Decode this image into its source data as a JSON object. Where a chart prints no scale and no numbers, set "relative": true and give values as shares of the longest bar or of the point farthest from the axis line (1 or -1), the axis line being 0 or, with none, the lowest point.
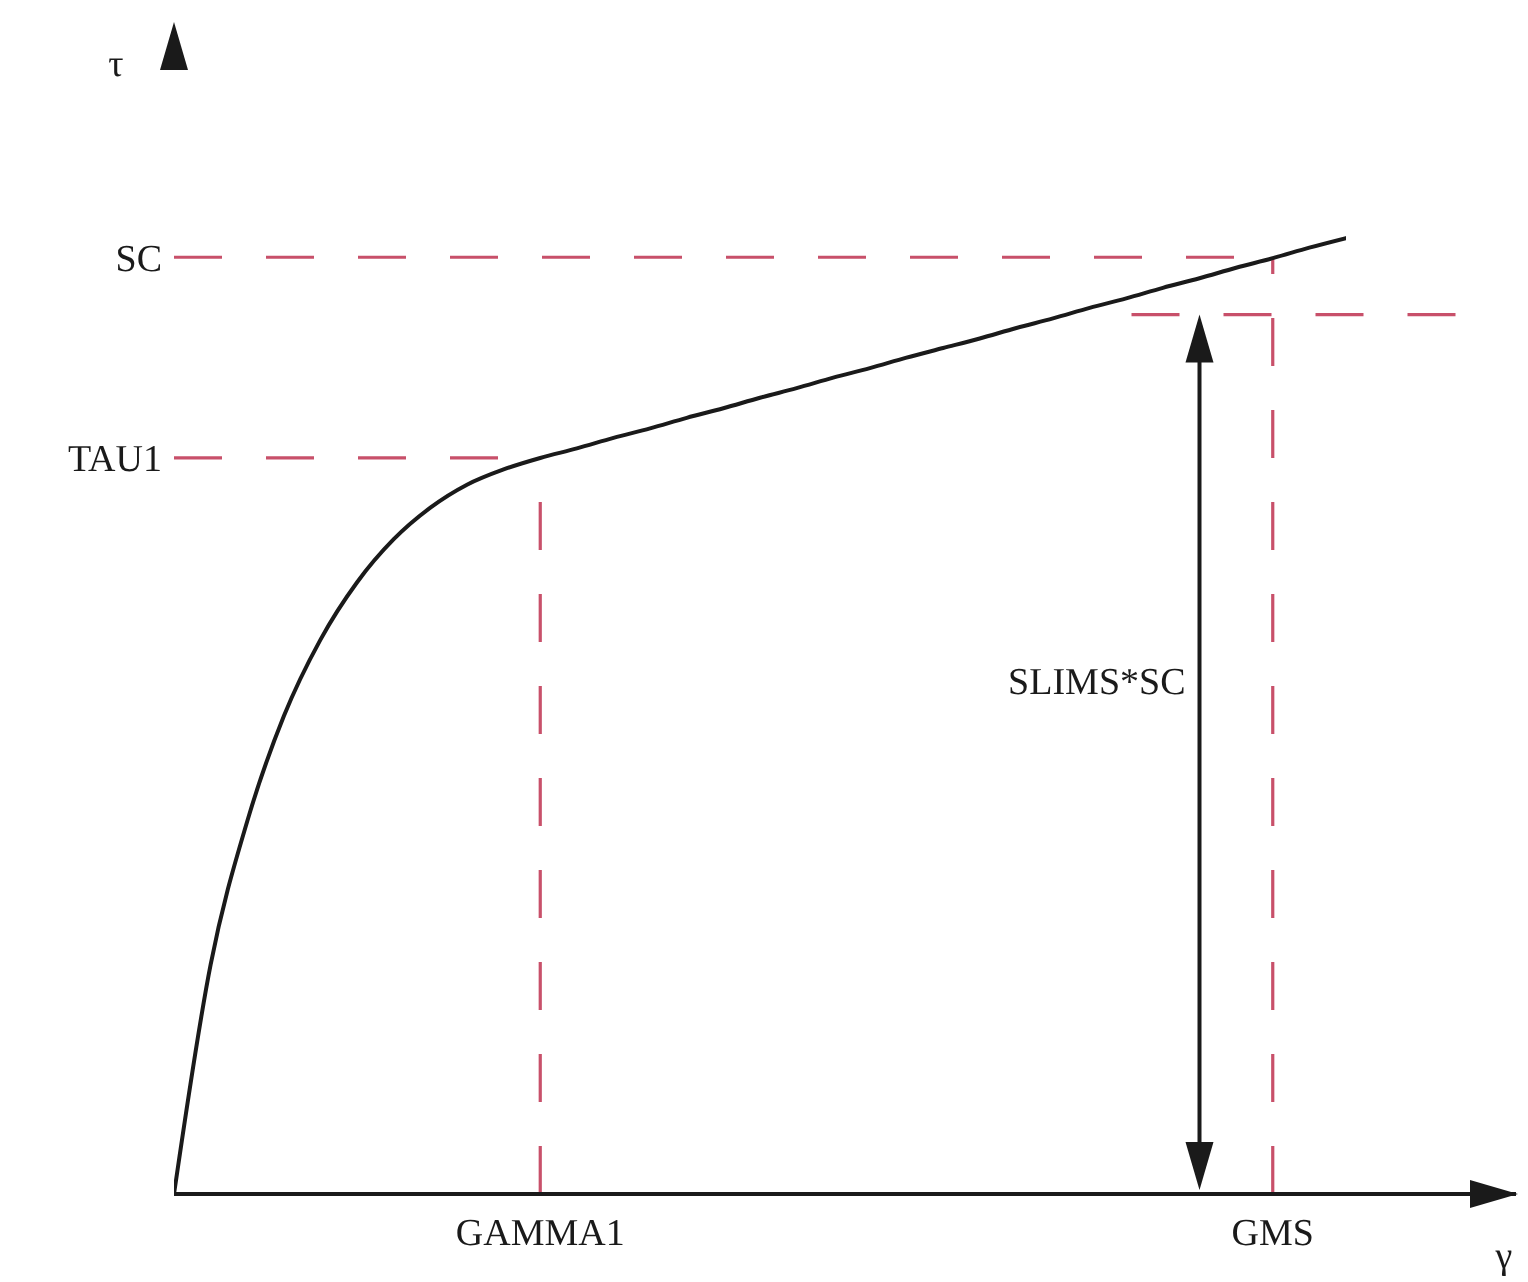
{
  "chart_data": {
    "type": "line",
    "xlabel": "γ",
    "ylabel": "τ",
    "relative": true,
    "categories": [
      null,
      null,
      null,
      null,
      null,
      null,
      null,
      null,
      null,
      null,
      "GAMMA1",
      null,
      null,
      null,
      null,
      null,
      null,
      null,
      null,
      null,
      null,
      null,
      null,
      null,
      null,
      null,
      null,
      null,
      null,
      null,
      "GMS",
      null,
      null
    ],
    "series": [
      {
        "color": "#1a1a1a",
        "values": [
          0,
          0.24,
          0.39,
          0.5,
          0.58,
          0.64,
          0.685,
          0.718,
          0.742,
          0.758,
          0.77,
          0.78,
          0.791,
          0.801,
          0.812,
          0.822,
          0.833,
          0.843,
          0.854,
          0.864,
          0.875,
          0.885,
          0.895,
          0.906,
          0.916,
          0.927,
          0.937,
          0.948,
          0.958,
          0.969,
          0.979,
          0.99,
          1
        ]
      }
    ],
    "ref_lines": [
      {
        "axis": "y",
        "value": 0.77,
        "label": "TAU1",
        "color": "#c8506a",
        "line_style": "dashed"
      },
      {
        "axis": "y",
        "value": 0.98,
        "label": "SC",
        "color": "#c8506a",
        "line_style": "dashed"
      },
      {
        "axis": "x",
        "value": "GAMMA1",
        "color": "#c8506a",
        "line_style": "dashed"
      },
      {
        "axis": "x",
        "value": "GMS",
        "color": "#c8506a",
        "line_style": "dashed"
      },
      {
        "axis": "y",
        "value": 0.92,
        "color": "#c8506a",
        "line_style": "dashed"
      }
    ],
    "annotations": [
      "SLIMS*SC"
    ]
  }
}
